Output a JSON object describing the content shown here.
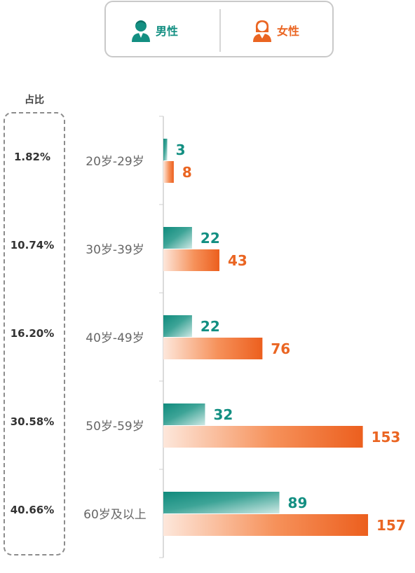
{
  "legend": {
    "male_label": "男性",
    "female_label": "女性",
    "male_icon": "male-user-icon",
    "female_icon": "female-user-icon"
  },
  "share_title": "占比",
  "colors": {
    "male": "#138f82",
    "female": "#ea6522"
  },
  "chart_data": {
    "type": "bar",
    "orientation": "horizontal",
    "categories": [
      "20岁-29岁",
      "30岁-39岁",
      "40岁-49岁",
      "50岁-59岁",
      "60岁及以上"
    ],
    "share": [
      "1.82%",
      "10.74%",
      "16.20%",
      "30.58%",
      "40.66%"
    ],
    "series": [
      {
        "name": "男性",
        "values": [
          3,
          22,
          22,
          32,
          89
        ]
      },
      {
        "name": "女性",
        "values": [
          8,
          43,
          76,
          153,
          157
        ]
      }
    ],
    "xlim": [
      0,
      160
    ],
    "grid": false,
    "legend": "top"
  }
}
